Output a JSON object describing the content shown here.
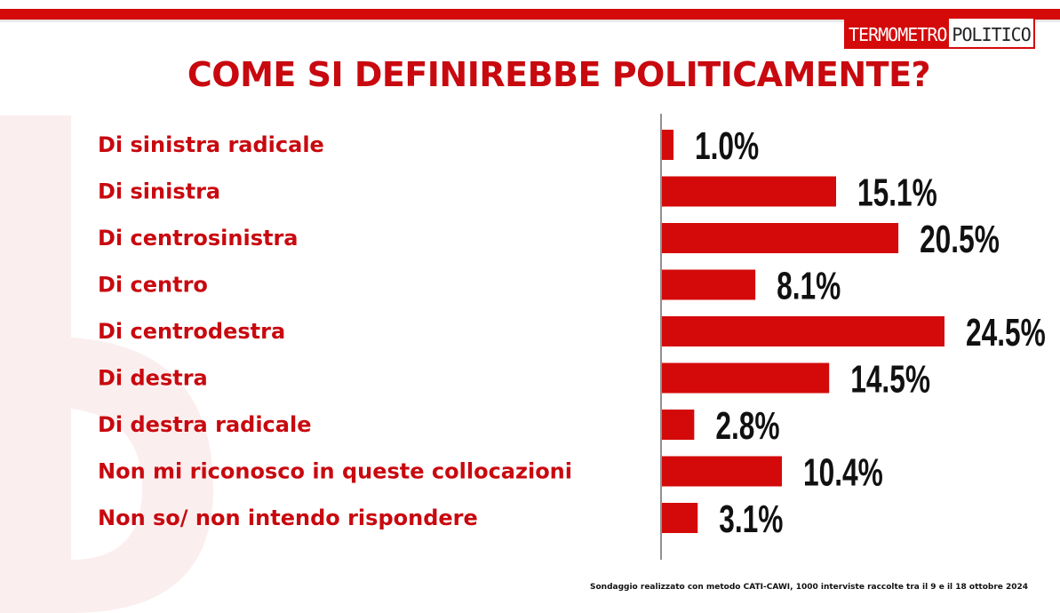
{
  "header": {
    "logo_part_a": "TERMOMETRO",
    "logo_part_b": "POLITICO",
    "accent_color": "#d40a0a"
  },
  "chart_data": {
    "type": "bar",
    "orientation": "horizontal",
    "title": "COME SI DEFINIREBBE POLITICAMENTE?",
    "categories": [
      "Di sinistra radicale",
      "Di sinistra",
      "Di centrosinistra",
      "Di centro",
      "Di centrodestra",
      "Di destra",
      "Di destra radicale",
      "Non mi riconosco in queste collocazioni",
      "Non so/ non intendo rispondere"
    ],
    "values": [
      1.0,
      15.1,
      20.5,
      8.1,
      24.5,
      14.5,
      2.8,
      10.4,
      3.1
    ],
    "value_labels": [
      "1.0%",
      "15.1%",
      "20.5%",
      "8.1%",
      "24.5%",
      "14.5%",
      "2.8%",
      "10.4%",
      "3.1%"
    ],
    "bar_color": "#d40a0a",
    "label_color": "#c8090f",
    "xlim": [
      0,
      24.5
    ],
    "grid": false,
    "legend": "none"
  },
  "footnote": "Sondaggio realizzato con metodo CATI-CAWI, 1000 interviste raccolte tra il 9 e il 18 ottobre 2024"
}
